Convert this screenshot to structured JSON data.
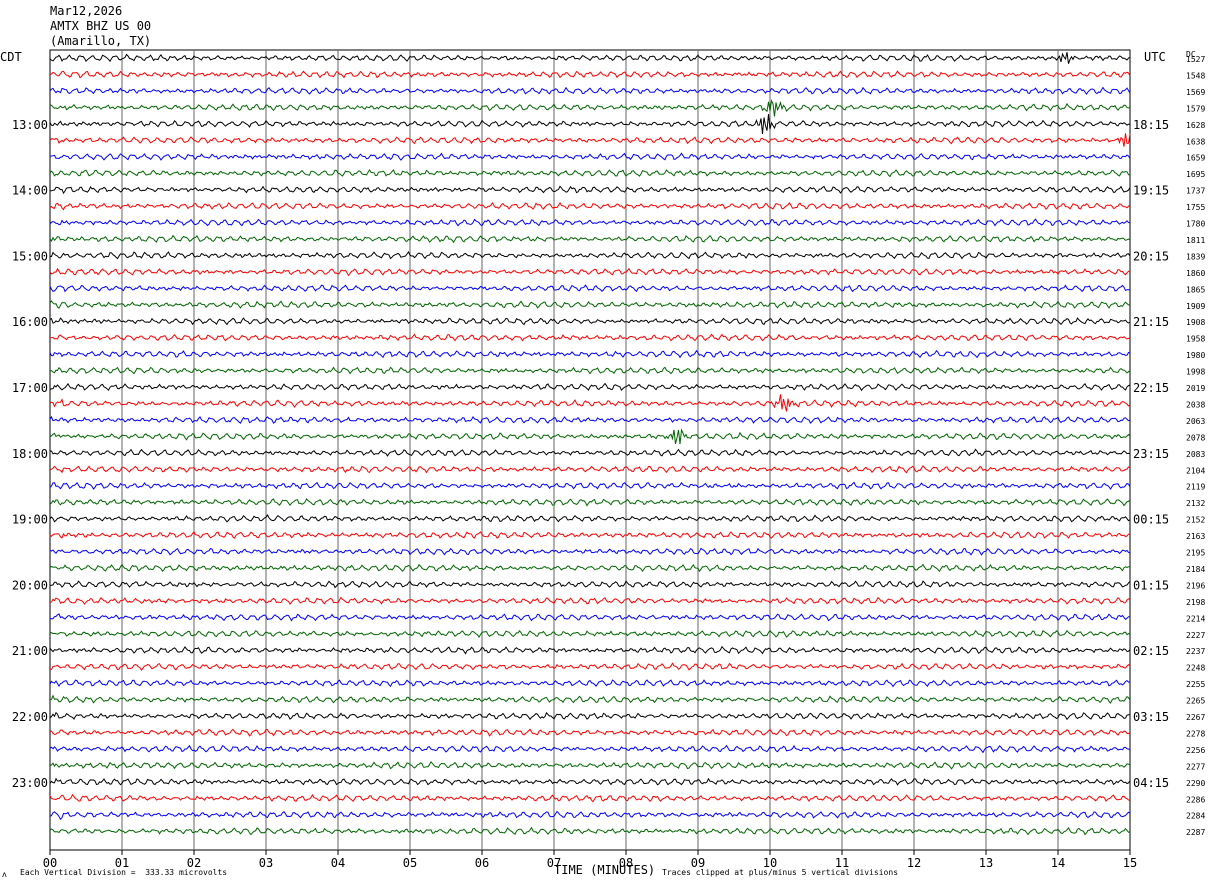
{
  "header": {
    "date": "Mar12,2026",
    "station": "AMTX BHZ US 00",
    "location": "(Amarillo, TX)"
  },
  "left_tz": "CDT",
  "right_tz": "UTC",
  "dc_label": "DC",
  "footer": {
    "scale": "Each Vertical Division =  333.33 microvolts",
    "xaxis_title": "TIME (MINUTES)",
    "clip_note": "Traces clipped at plus/minus 5 vertical divisions",
    "corner_mark": "ʌ"
  },
  "colors": [
    "#000000",
    "#ff0000",
    "#0000ff",
    "#006600"
  ],
  "chart_data": {
    "type": "line",
    "xlabel": "TIME (MINUTES)",
    "xlim": [
      0,
      15
    ],
    "x_ticks": [
      "00",
      "01",
      "02",
      "03",
      "04",
      "05",
      "06",
      "07",
      "08",
      "09",
      "10",
      "11",
      "12",
      "13",
      "14",
      "15"
    ],
    "trace_count": 48,
    "left_hour_labels": [
      "13:00",
      "14:00",
      "15:00",
      "16:00",
      "17:00",
      "18:00",
      "19:00",
      "20:00",
      "21:00",
      "22:00",
      "23:00"
    ],
    "right_hour_labels": [
      "18:15",
      "19:15",
      "20:15",
      "21:15",
      "22:15",
      "23:15",
      "00:15",
      "01:15",
      "02:15",
      "03:15",
      "04:15"
    ],
    "dc_values": [
      "1527",
      "1548",
      "1569",
      "1579",
      "1628",
      "1638",
      "1659",
      "1695",
      "1737",
      "1755",
      "1780",
      "1811",
      "1839",
      "1860",
      "1865",
      "1909",
      "1908",
      "1958",
      "1980",
      "1998",
      "2019",
      "2038",
      "2063",
      "2078",
      "2083",
      "2104",
      "2119",
      "2132",
      "2152",
      "2163",
      "2195",
      "2184",
      "2196",
      "2198",
      "2214",
      "2227",
      "2237",
      "2248",
      "2255",
      "2265",
      "2267",
      "2278",
      "2256",
      "2277",
      "2290",
      "2286",
      "2284",
      "2287"
    ],
    "events": [
      {
        "trace": 0,
        "minute": 14.1,
        "amp": 2.0
      },
      {
        "trace": 3,
        "minute": 10.05,
        "amp": 2.5
      },
      {
        "trace": 4,
        "minute": 9.95,
        "amp": 3.0
      },
      {
        "trace": 5,
        "minute": 14.95,
        "amp": 2.0
      },
      {
        "trace": 21,
        "minute": 10.2,
        "amp": 2.5
      },
      {
        "trace": 23,
        "minute": 8.7,
        "amp": 2.5
      }
    ]
  }
}
